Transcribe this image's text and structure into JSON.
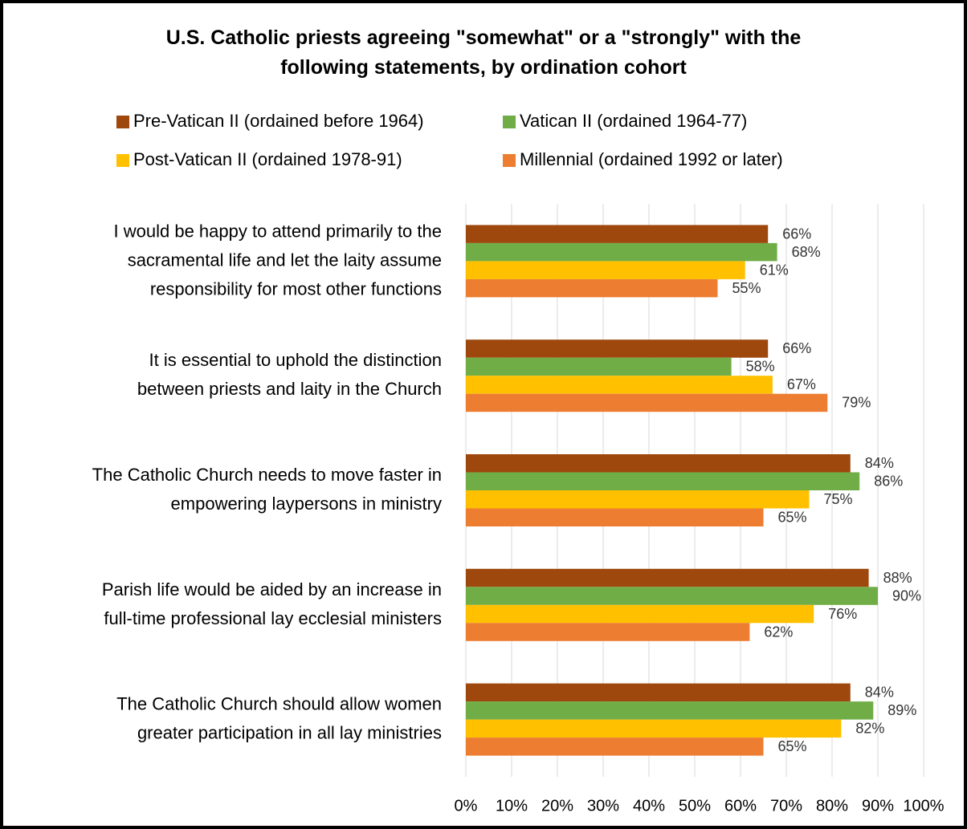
{
  "chart_data": {
    "type": "bar",
    "orientation": "horizontal",
    "title": "U.S. Catholic priests agreeing \"somewhat\" or a \"strongly\" with the\nfollowing statements, by ordination cohort",
    "categories": [
      "I would be happy to attend primarily to the\nsacramental life and let the laity assume\nresponsibility for most other functions",
      "It is essential to uphold the distinction\nbetween priests and laity in the Church",
      "The Catholic Church needs to move faster in\nempowering laypersons in ministry",
      "Parish life would be aided by an increase in\nfull-time professional lay ecclesial ministers",
      "The Catholic Church should allow women\ngreater participation in all lay ministries"
    ],
    "series": [
      {
        "name": "Pre-Vatican II (ordained before 1964)",
        "color": "#9e480e",
        "values": [
          66,
          66,
          84,
          88,
          84
        ],
        "value_labels": [
          "66%",
          "66%",
          "84%",
          "88%",
          "84%"
        ]
      },
      {
        "name": "Vatican II (ordained 1964-77)",
        "color": "#70ad47",
        "values": [
          68,
          58,
          86,
          90,
          89
        ],
        "value_labels": [
          "68%",
          "58%",
          "86%",
          "90%",
          "89%"
        ]
      },
      {
        "name": "Post-Vatican II (ordained 1978-91)",
        "color": "#ffc000",
        "values": [
          61,
          67,
          75,
          76,
          82
        ],
        "value_labels": [
          "61%",
          "67%",
          "75%",
          "76%",
          "82%"
        ]
      },
      {
        "name": "Millennial (ordained 1992 or later)",
        "color": "#ed7d31",
        "values": [
          55,
          79,
          65,
          62,
          65
        ],
        "value_labels": [
          "55%",
          "79%",
          "65%",
          "62%",
          "65%"
        ]
      }
    ],
    "xlim": [
      0,
      100
    ],
    "xticks": [
      {
        "value": 0,
        "label": "0%"
      },
      {
        "value": 10,
        "label": "10%"
      },
      {
        "value": 20,
        "label": "20%"
      },
      {
        "value": 30,
        "label": "30%"
      },
      {
        "value": 40,
        "label": "40%"
      },
      {
        "value": 50,
        "label": "50%"
      },
      {
        "value": 60,
        "label": "60%"
      },
      {
        "value": 70,
        "label": "70%"
      },
      {
        "value": 80,
        "label": "80%"
      },
      {
        "value": 90,
        "label": "90%"
      },
      {
        "value": 100,
        "label": "100%"
      }
    ],
    "grid": true,
    "legend": "top"
  }
}
